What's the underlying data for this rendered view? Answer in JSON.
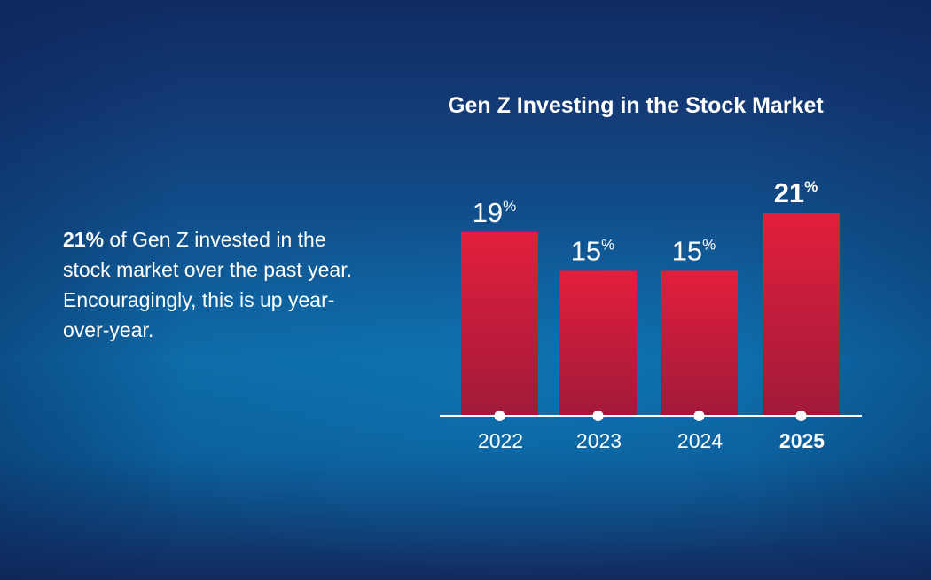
{
  "blurb": {
    "highlight": "21%",
    "text": " of Gen Z invested in the stock market over the past year. Encouragingly, this is up year-over-year."
  },
  "colors": {
    "background_top": "#0f2c62",
    "background_mid": "#0d6aa6",
    "bar_top": "#e21f3c",
    "bar_bottom": "#a11a3a",
    "axis": "#ffffff"
  },
  "chart_data": {
    "type": "bar",
    "title": "Gen Z Investing in the Stock Market",
    "categories": [
      "2022",
      "2023",
      "2024",
      "2025"
    ],
    "values": [
      19,
      15,
      15,
      21
    ],
    "unit": "%",
    "highlight_category": "2025",
    "xlabel": "",
    "ylabel": "",
    "ylim": [
      0,
      21
    ],
    "grid": false
  }
}
